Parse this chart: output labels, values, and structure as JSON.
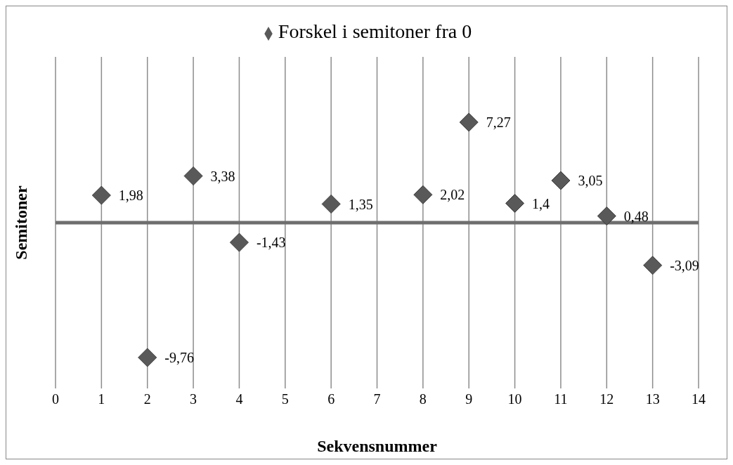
{
  "chart_data": {
    "type": "scatter",
    "xlabel": "Sekvensnummer",
    "ylabel": "Semitoner",
    "x": [
      1,
      2,
      3,
      4,
      6,
      8,
      9,
      10,
      11,
      12,
      13
    ],
    "series": [
      {
        "name": "Forskel i semitoner fra 0",
        "color": "#595959",
        "values": [
          1.98,
          -9.76,
          3.38,
          -1.43,
          1.35,
          2.02,
          7.27,
          1.4,
          3.05,
          0.48,
          -3.09
        ],
        "value_labels": [
          "1,98",
          "-9,76",
          "3,38",
          "-1,43",
          "1,35",
          "2,02",
          "7,27",
          "1,4",
          "3,05",
          "0,48",
          "-3,09"
        ]
      }
    ],
    "xlim": [
      0,
      14
    ],
    "xticks": [
      0,
      1,
      2,
      3,
      4,
      5,
      6,
      7,
      8,
      9,
      10,
      11,
      12,
      13,
      14
    ],
    "ylim": [
      -12,
      12
    ],
    "grid": "x",
    "legend": "top",
    "marker": "diamond",
    "tick_labels": "x"
  }
}
